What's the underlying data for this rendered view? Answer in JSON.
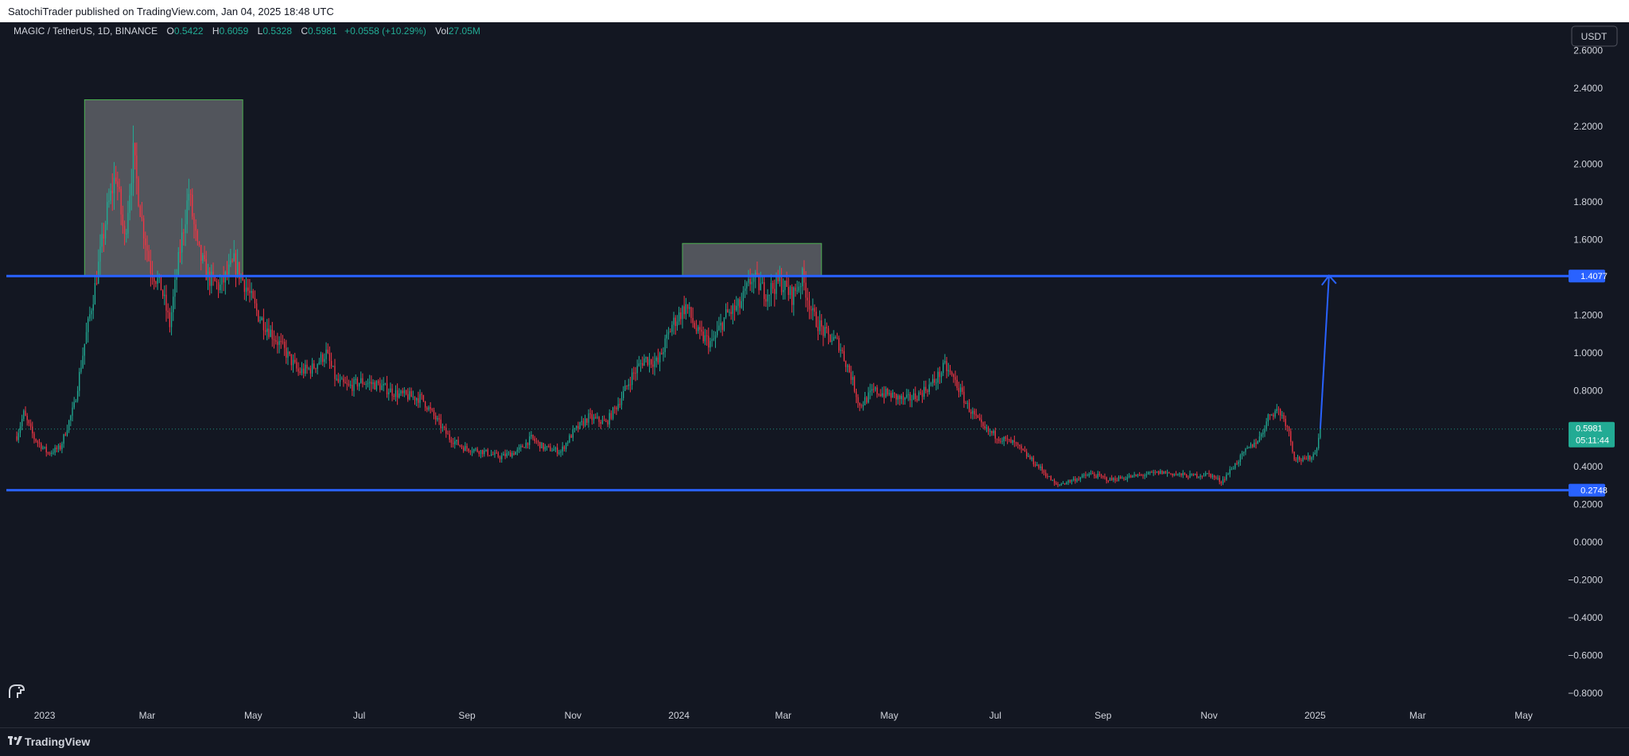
{
  "header": {
    "publisher_text": "SatochiTrader published on TradingView.com, Jan 04, 2025 18:48 UTC"
  },
  "footer": {
    "brand": "TradingView"
  },
  "colors": {
    "background": "#131722",
    "up": "#22ab94",
    "down": "#f23645",
    "level_line": "#2962ff",
    "box_border": "#4caf50"
  },
  "chart_data": {
    "type": "candlestick",
    "symbol_title": "MAGIC / TetherUS, 1D, BINANCE",
    "ohlc": {
      "open_label": "O",
      "open": "0.5422",
      "high_label": "H",
      "high": "0.6059",
      "low_label": "L",
      "low": "0.5328",
      "close_label": "C",
      "close": "0.5981",
      "change": "+0.0558 (+10.29%)",
      "volume_label": "Vol",
      "volume": "27.05M"
    },
    "currency": "USDT",
    "y_axis": {
      "ylim": [
        -0.9,
        2.75
      ],
      "ticks": [
        "2.6000",
        "2.4000",
        "2.2000",
        "2.0000",
        "1.8000",
        "1.6000",
        "1.4000",
        "1.2000",
        "1.0000",
        "0.8000",
        "0.6000",
        "0.4000",
        "0.2000",
        "0.0000",
        "−0.2000",
        "−0.4000",
        "−0.6000",
        "−0.8000"
      ],
      "tick_values": [
        2.6,
        2.4,
        2.2,
        2.0,
        1.8,
        1.6,
        1.4,
        1.2,
        1.0,
        0.8,
        0.6,
        0.4,
        0.2,
        0.0,
        -0.2,
        -0.4,
        -0.6,
        -0.8
      ]
    },
    "x_axis": {
      "labels": [
        "2023",
        "Mar",
        "May",
        "Jul",
        "Sep",
        "Nov",
        "2024",
        "Mar",
        "May",
        "Jul",
        "Sep",
        "Nov",
        "2025",
        "Mar",
        "May"
      ],
      "label_dates": [
        "2023-01-01",
        "2023-03-01",
        "2023-05-01",
        "2023-07-01",
        "2023-09-01",
        "2023-11-01",
        "2024-01-01",
        "2024-03-01",
        "2024-05-01",
        "2024-07-01",
        "2024-09-01",
        "2024-11-01",
        "2025-01-01",
        "2025-03-01",
        "2025-05-01"
      ],
      "range": [
        "2022-12-10",
        "2025-05-25"
      ]
    },
    "current_price": {
      "value": 0.5981,
      "label": "0.5981",
      "countdown": "05:11:44"
    },
    "levels": [
      {
        "value": 1.4077,
        "label": "1.4077"
      },
      {
        "value": 0.2748,
        "label": "0.2748"
      }
    ],
    "boxes": [
      {
        "x0": "2023-01-24",
        "x1": "2023-04-25",
        "y0": 1.41,
        "y1": 2.34
      },
      {
        "x0": "2024-01-03",
        "x1": "2024-03-23",
        "y0": 1.41,
        "y1": 1.58
      }
    ],
    "arrow": {
      "from": {
        "x": "2025-01-04",
        "y": 0.6
      },
      "to": {
        "x": "2025-01-09",
        "y": 1.41
      }
    },
    "price_path": [
      [
        "2022-12-16",
        0.56
      ],
      [
        "2022-12-20",
        0.68
      ],
      [
        "2022-12-26",
        0.55
      ],
      [
        "2023-01-03",
        0.47
      ],
      [
        "2023-01-10",
        0.5
      ],
      [
        "2023-01-18",
        0.72
      ],
      [
        "2023-01-24",
        1.05
      ],
      [
        "2023-01-30",
        1.35
      ],
      [
        "2023-02-06",
        1.75
      ],
      [
        "2023-02-11",
        1.95
      ],
      [
        "2023-02-16",
        1.6
      ],
      [
        "2023-02-21",
        2.05
      ],
      [
        "2023-02-26",
        1.7
      ],
      [
        "2023-03-03",
        1.45
      ],
      [
        "2023-03-09",
        1.35
      ],
      [
        "2023-03-14",
        1.15
      ],
      [
        "2023-03-20",
        1.55
      ],
      [
        "2023-03-25",
        1.85
      ],
      [
        "2023-03-30",
        1.55
      ],
      [
        "2023-04-05",
        1.4
      ],
      [
        "2023-04-12",
        1.35
      ],
      [
        "2023-04-20",
        1.48
      ],
      [
        "2023-04-27",
        1.35
      ],
      [
        "2023-05-04",
        1.2
      ],
      [
        "2023-05-12",
        1.1
      ],
      [
        "2023-05-20",
        1.0
      ],
      [
        "2023-05-27",
        0.9
      ],
      [
        "2023-06-04",
        0.92
      ],
      [
        "2023-06-12",
        1.0
      ],
      [
        "2023-06-18",
        0.85
      ],
      [
        "2023-06-25",
        0.82
      ],
      [
        "2023-07-02",
        0.85
      ],
      [
        "2023-07-12",
        0.83
      ],
      [
        "2023-07-24",
        0.78
      ],
      [
        "2023-08-06",
        0.76
      ],
      [
        "2023-08-15",
        0.64
      ],
      [
        "2023-08-22",
        0.55
      ],
      [
        "2023-08-30",
        0.5
      ],
      [
        "2023-09-10",
        0.48
      ],
      [
        "2023-09-20",
        0.45
      ],
      [
        "2023-09-30",
        0.48
      ],
      [
        "2023-10-08",
        0.55
      ],
      [
        "2023-10-15",
        0.5
      ],
      [
        "2023-10-25",
        0.48
      ],
      [
        "2023-11-01",
        0.58
      ],
      [
        "2023-11-10",
        0.66
      ],
      [
        "2023-11-20",
        0.63
      ],
      [
        "2023-11-28",
        0.75
      ],
      [
        "2023-12-05",
        0.88
      ],
      [
        "2023-12-12",
        0.97
      ],
      [
        "2023-12-20",
        0.95
      ],
      [
        "2023-12-28",
        1.15
      ],
      [
        "2024-01-05",
        1.25
      ],
      [
        "2024-01-12",
        1.1
      ],
      [
        "2024-01-20",
        1.05
      ],
      [
        "2024-01-28",
        1.2
      ],
      [
        "2024-02-05",
        1.25
      ],
      [
        "2024-02-12",
        1.4
      ],
      [
        "2024-02-20",
        1.32
      ],
      [
        "2024-02-28",
        1.38
      ],
      [
        "2024-03-06",
        1.3
      ],
      [
        "2024-03-12",
        1.4
      ],
      [
        "2024-03-18",
        1.2
      ],
      [
        "2024-03-25",
        1.1
      ],
      [
        "2024-04-02",
        1.05
      ],
      [
        "2024-04-09",
        0.88
      ],
      [
        "2024-04-14",
        0.72
      ],
      [
        "2024-04-22",
        0.8
      ],
      [
        "2024-05-01",
        0.78
      ],
      [
        "2024-05-10",
        0.75
      ],
      [
        "2024-05-18",
        0.78
      ],
      [
        "2024-05-27",
        0.85
      ],
      [
        "2024-06-02",
        0.93
      ],
      [
        "2024-06-08",
        0.85
      ],
      [
        "2024-06-15",
        0.72
      ],
      [
        "2024-06-24",
        0.6
      ],
      [
        "2024-07-04",
        0.55
      ],
      [
        "2024-07-12",
        0.52
      ],
      [
        "2024-07-20",
        0.45
      ],
      [
        "2024-07-28",
        0.38
      ],
      [
        "2024-08-05",
        0.3
      ],
      [
        "2024-08-15",
        0.33
      ],
      [
        "2024-08-25",
        0.36
      ],
      [
        "2024-09-05",
        0.33
      ],
      [
        "2024-09-20",
        0.35
      ],
      [
        "2024-10-05",
        0.37
      ],
      [
        "2024-10-20",
        0.35
      ],
      [
        "2024-11-01",
        0.36
      ],
      [
        "2024-11-08",
        0.32
      ],
      [
        "2024-11-15",
        0.4
      ],
      [
        "2024-11-22",
        0.48
      ],
      [
        "2024-11-30",
        0.55
      ],
      [
        "2024-12-06",
        0.68
      ],
      [
        "2024-12-11",
        0.7
      ],
      [
        "2024-12-16",
        0.62
      ],
      [
        "2024-12-20",
        0.45
      ],
      [
        "2024-12-26",
        0.43
      ],
      [
        "2025-01-01",
        0.47
      ],
      [
        "2025-01-04",
        0.598
      ]
    ]
  }
}
